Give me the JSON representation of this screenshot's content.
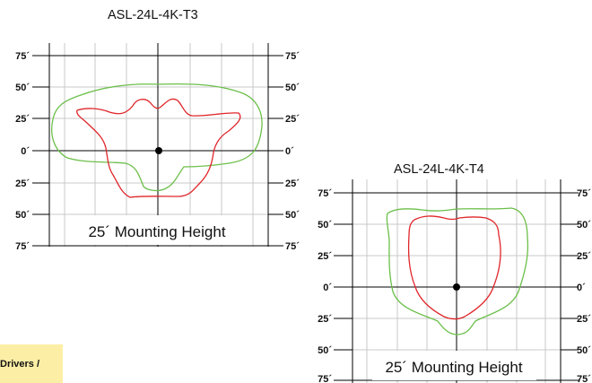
{
  "diagrams": [
    {
      "title": "ASL-24L-4K-T3",
      "caption": "25´ Mounting Height",
      "left_ticks": [
        "75´",
        "50´",
        "25´",
        "0´",
        "25´",
        "50´",
        "75´"
      ],
      "right_ticks": [
        "75´",
        "50´",
        "25´",
        "0´",
        "25´",
        "50´",
        "75´"
      ]
    },
    {
      "title": "ASL-24L-4K-T4",
      "caption": "25´ Mounting Height",
      "left_ticks": [
        "75´",
        "50´",
        "25´",
        "0´",
        "25´",
        "50´",
        "75´"
      ],
      "right_ticks": [
        "75´",
        "50´",
        "25´",
        "0´",
        "25´",
        "50´",
        "75´"
      ]
    }
  ],
  "drivers_tag": "Drivers /",
  "colors": {
    "outer_contour": "#6cbf4a",
    "inner_contour": "#e0262a",
    "grid": "#c8c8c8",
    "axis": "#000000",
    "tag_bg": "#fdeea5"
  }
}
